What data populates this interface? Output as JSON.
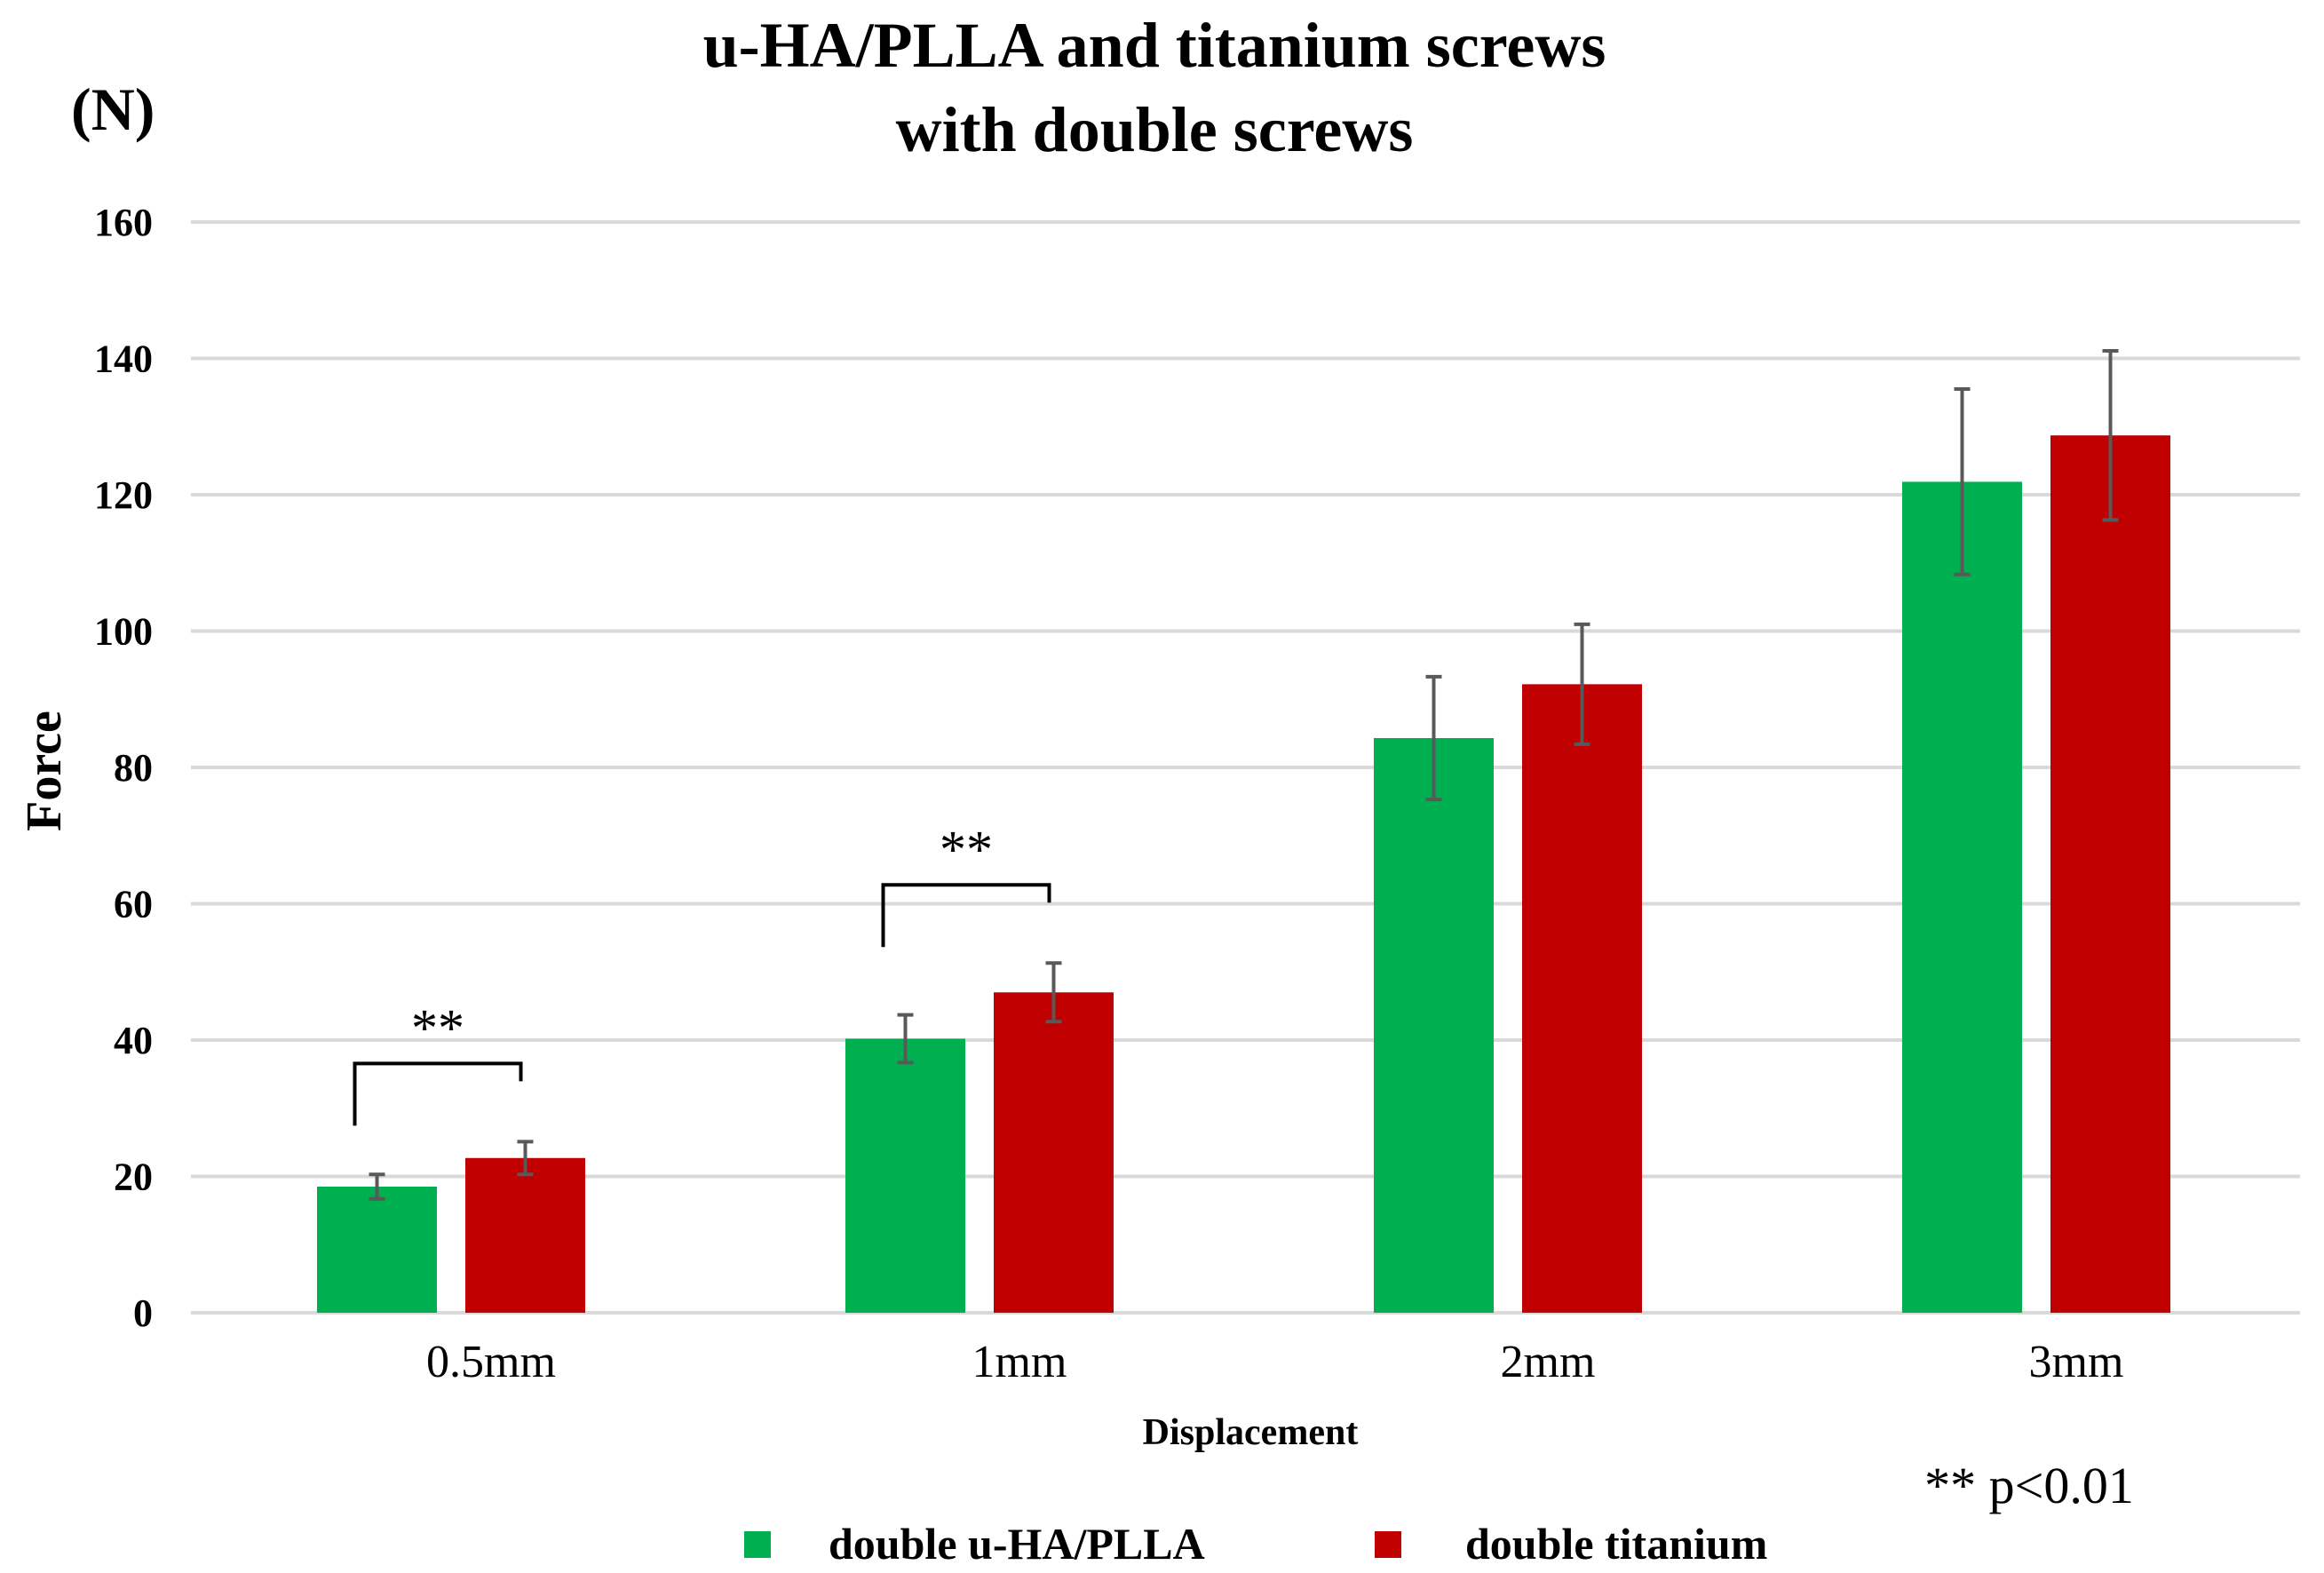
{
  "chart_data": {
    "type": "bar",
    "title": [
      "u-HA/PLLA and titanium screws",
      "with double screws"
    ],
    "unit_label": "(N)",
    "ylabel": "Force",
    "xlabel": "Displacement",
    "ylim": [
      0,
      160
    ],
    "yticks": [
      0,
      20,
      40,
      60,
      80,
      100,
      120,
      140,
      160
    ],
    "grid": true,
    "categories": [
      "0.5mm",
      "1mm",
      "2mm",
      "3mm"
    ],
    "series": [
      {
        "name": "double u-HA/PLLA",
        "color": "#00b050",
        "values": [
          18.5,
          40.2,
          84.3,
          121.9
        ],
        "errors": [
          1.8,
          3.5,
          9.0,
          13.6
        ]
      },
      {
        "name": "double titanium",
        "color": "#c00000",
        "values": [
          22.7,
          47.0,
          92.2,
          128.7
        ],
        "errors": [
          2.4,
          4.3,
          8.8,
          12.4
        ]
      }
    ],
    "significance": [
      {
        "category_index": 0,
        "label": "**"
      },
      {
        "category_index": 1,
        "label": "**"
      }
    ],
    "note": "** p<0.01",
    "legend_position": "bottom"
  }
}
